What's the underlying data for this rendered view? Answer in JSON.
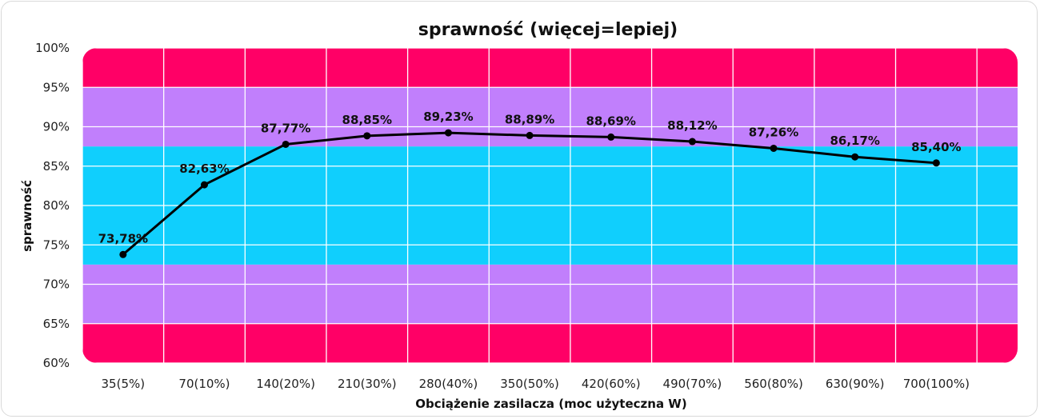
{
  "chart_data": {
    "type": "line",
    "title": "sprawność (więcej=lepiej)",
    "xlabel": "Obciążenie zasilacza (moc użyteczna W)",
    "ylabel": "sprawność",
    "categories": [
      "35(5%)",
      "70(10%)",
      "140(20%)",
      "210(30%)",
      "280(40%)",
      "350(50%)",
      "420(60%)",
      "490(70%)",
      "560(80%)",
      "630(90%)",
      "700(100%)"
    ],
    "series": [
      {
        "values": [
          73.78,
          82.63,
          87.77,
          88.85,
          89.23,
          88.89,
          88.69,
          88.12,
          87.26,
          86.17,
          85.4
        ],
        "labels": [
          "73,78%",
          "82,63%",
          "87,77%",
          "88,85%",
          "89,23%",
          "88,89%",
          "88,69%",
          "88,12%",
          "87,26%",
          "86,17%",
          "85,40%"
        ]
      }
    ],
    "ylim": [
      60,
      100
    ],
    "yticks": [
      "60%",
      "65%",
      "70%",
      "75%",
      "80%",
      "85%",
      "90%",
      "95%",
      "100%"
    ],
    "ytick_values": [
      60,
      65,
      70,
      75,
      80,
      85,
      90,
      95,
      100
    ],
    "grid": true,
    "background_bands": [
      {
        "from": 60,
        "to": 65,
        "color": "#ff0066"
      },
      {
        "from": 65,
        "to": 72.5,
        "color": "#c17ffc"
      },
      {
        "from": 72.5,
        "to": 87.5,
        "color": "#10cffd"
      },
      {
        "from": 87.5,
        "to": 95,
        "color": "#c17ffc"
      },
      {
        "from": 95,
        "to": 100,
        "color": "#ff0066"
      }
    ],
    "line_color": "#000000"
  }
}
